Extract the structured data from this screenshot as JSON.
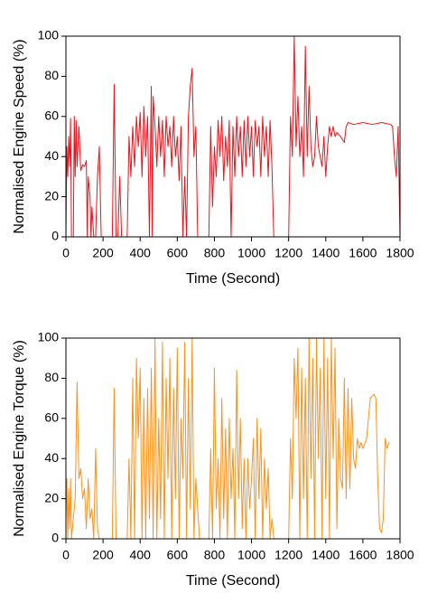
{
  "chart_data": [
    {
      "type": "line",
      "ylabel": "Normalised Engine Speed (%)",
      "xlabel": "Time (Second)",
      "xlim": [
        0,
        1800
      ],
      "xticks": [
        0,
        200,
        400,
        600,
        800,
        1000,
        1200,
        1400,
        1600,
        1800
      ],
      "ylim": [
        0,
        100
      ],
      "yticks": [
        0,
        20,
        40,
        60,
        80,
        100
      ],
      "color": "#e8141c",
      "x": [
        0,
        5,
        10,
        15,
        20,
        25,
        30,
        40,
        45,
        50,
        55,
        60,
        70,
        80,
        90,
        100,
        110,
        115,
        120,
        130,
        135,
        140,
        150,
        160,
        170,
        180,
        190,
        200,
        250,
        260,
        270,
        280,
        290,
        300,
        330,
        340,
        350,
        360,
        370,
        380,
        390,
        400,
        410,
        420,
        430,
        440,
        450,
        460,
        465,
        470,
        480,
        490,
        500,
        510,
        520,
        530,
        540,
        550,
        560,
        570,
        580,
        590,
        600,
        610,
        620,
        630,
        640,
        650,
        660,
        670,
        680,
        690,
        700,
        710,
        720,
        770,
        780,
        790,
        800,
        810,
        820,
        830,
        840,
        850,
        860,
        870,
        880,
        890,
        900,
        910,
        920,
        930,
        940,
        950,
        960,
        970,
        980,
        990,
        1000,
        1010,
        1020,
        1030,
        1040,
        1050,
        1060,
        1070,
        1080,
        1090,
        1100,
        1110,
        1120,
        1130,
        1200,
        1210,
        1220,
        1230,
        1240,
        1250,
        1260,
        1270,
        1280,
        1290,
        1300,
        1310,
        1320,
        1330,
        1340,
        1350,
        1360,
        1370,
        1380,
        1390,
        1400,
        1410,
        1420,
        1430,
        1440,
        1450,
        1460,
        1480,
        1500,
        1510,
        1520,
        1550,
        1600,
        1650,
        1700,
        1750,
        1760,
        1770,
        1780,
        1790,
        1800
      ],
      "values": [
        0,
        45,
        30,
        50,
        35,
        59,
        0,
        0,
        60,
        30,
        58,
        35,
        55,
        33,
        36,
        35,
        38,
        0,
        30,
        20,
        0,
        15,
        0,
        0,
        30,
        45,
        0,
        0,
        0,
        76,
        0,
        0,
        30,
        0,
        0,
        50,
        30,
        55,
        35,
        60,
        45,
        62,
        30,
        65,
        40,
        60,
        0,
        75,
        0,
        70,
        55,
        35,
        60,
        40,
        58,
        30,
        60,
        45,
        55,
        35,
        60,
        40,
        50,
        28,
        55,
        0,
        30,
        0,
        60,
        75,
        84,
        40,
        55,
        0,
        0,
        0,
        55,
        15,
        45,
        30,
        58,
        40,
        60,
        28,
        50,
        35,
        58,
        0,
        55,
        30,
        60,
        40,
        55,
        30,
        58,
        35,
        60,
        40,
        55,
        30,
        58,
        45,
        55,
        30,
        60,
        40,
        55,
        30,
        58,
        35,
        0,
        0,
        0,
        60,
        40,
        100,
        45,
        70,
        40,
        55,
        30,
        95,
        40,
        75,
        45,
        35,
        40,
        60,
        45,
        40,
        35,
        50,
        30,
        45,
        55,
        50,
        55,
        50,
        52,
        50,
        47,
        55,
        57,
        56,
        57,
        56,
        57,
        56,
        55,
        40,
        30,
        55,
        0
      ]
    },
    {
      "type": "line",
      "ylabel": "Normalised Engine Torque (%)",
      "xlabel": "Time (Second)",
      "xlim": [
        0,
        1800
      ],
      "xticks": [
        0,
        200,
        400,
        600,
        800,
        1000,
        1200,
        1400,
        1600,
        1800
      ],
      "ylim": [
        0,
        100
      ],
      "yticks": [
        0,
        20,
        40,
        60,
        80,
        100
      ],
      "color": "#f7931e",
      "x": [
        0,
        5,
        10,
        15,
        20,
        25,
        30,
        40,
        50,
        60,
        70,
        80,
        90,
        100,
        110,
        120,
        130,
        140,
        150,
        160,
        170,
        180,
        200,
        250,
        260,
        270,
        330,
        340,
        350,
        360,
        370,
        380,
        390,
        400,
        410,
        420,
        430,
        440,
        450,
        460,
        470,
        480,
        490,
        500,
        510,
        520,
        530,
        540,
        550,
        560,
        570,
        580,
        590,
        600,
        610,
        620,
        630,
        640,
        650,
        660,
        670,
        680,
        690,
        700,
        720,
        770,
        780,
        790,
        800,
        810,
        820,
        830,
        840,
        850,
        860,
        870,
        880,
        890,
        900,
        910,
        920,
        930,
        940,
        950,
        960,
        970,
        980,
        990,
        1000,
        1010,
        1020,
        1030,
        1040,
        1050,
        1060,
        1070,
        1080,
        1090,
        1100,
        1110,
        1120,
        1200,
        1210,
        1220,
        1230,
        1240,
        1250,
        1260,
        1270,
        1280,
        1290,
        1300,
        1310,
        1320,
        1330,
        1340,
        1350,
        1360,
        1370,
        1380,
        1390,
        1400,
        1410,
        1420,
        1430,
        1440,
        1450,
        1460,
        1470,
        1480,
        1490,
        1500,
        1510,
        1520,
        1530,
        1540,
        1550,
        1560,
        1570,
        1580,
        1590,
        1600,
        1620,
        1640,
        1660,
        1670,
        1680,
        1690,
        1700,
        1710,
        1720,
        1730,
        1740
      ],
      "values": [
        10,
        30,
        0,
        25,
        5,
        30,
        0,
        10,
        20,
        78,
        30,
        35,
        20,
        25,
        5,
        30,
        10,
        15,
        0,
        45,
        5,
        0,
        0,
        0,
        75,
        0,
        0,
        40,
        0,
        80,
        0,
        90,
        50,
        85,
        0,
        70,
        0,
        75,
        10,
        85,
        0,
        100,
        0,
        60,
        10,
        98,
        0,
        80,
        30,
        90,
        0,
        75,
        20,
        95,
        0,
        60,
        30,
        98,
        0,
        80,
        15,
        100,
        0,
        30,
        0,
        0,
        45,
        0,
        85,
        15,
        40,
        0,
        70,
        10,
        55,
        0,
        60,
        20,
        45,
        0,
        84,
        20,
        60,
        5,
        40,
        0,
        40,
        15,
        30,
        50,
        0,
        60,
        20,
        55,
        0,
        40,
        15,
        35,
        0,
        10,
        0,
        0,
        50,
        20,
        90,
        60,
        95,
        0,
        85,
        20,
        80,
        0,
        100,
        30,
        90,
        0,
        100,
        40,
        85,
        0,
        100,
        20,
        90,
        0,
        100,
        40,
        95,
        5,
        60,
        30,
        25,
        80,
        20,
        75,
        25,
        70,
        40,
        35,
        50,
        45,
        48,
        45,
        50,
        70,
        72,
        70,
        30,
        5,
        3,
        10,
        50,
        45,
        48
      ]
    }
  ]
}
